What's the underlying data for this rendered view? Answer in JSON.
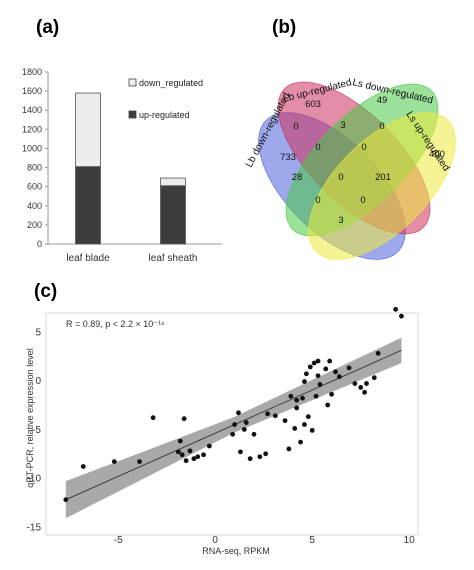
{
  "panel_labels": {
    "a": "(a)",
    "b": "(b)",
    "c": "(c)"
  },
  "chart_data": [
    {
      "type": "bar",
      "stacked": true,
      "categories": [
        "leaf blade",
        "leaf sheath"
      ],
      "series": [
        {
          "name": "up-regulated",
          "values": [
            810,
            610
          ],
          "color": "#3c3c3c"
        },
        {
          "name": "down_regulated",
          "values": [
            770,
            80
          ],
          "color": "#ececec"
        }
      ],
      "ylim": [
        0,
        1800
      ],
      "yticks": [
        0,
        200,
        400,
        600,
        800,
        1000,
        1200,
        1400,
        1600,
        1800
      ],
      "legend_order": [
        "down_regulated",
        "up-regulated"
      ],
      "legend_placement": "right"
    },
    {
      "type": "venn",
      "sets": [
        {
          "name": "Lb down-regulated",
          "color": "#4f62dd"
        },
        {
          "name": "Lb up-regulated",
          "color": "#cc2f5e"
        },
        {
          "name": "Ls down-regulated",
          "color": "#49c945"
        },
        {
          "name": "Ls up-regulated",
          "color": "#ecea3a"
        }
      ],
      "regions": [
        {
          "sets": [
            "Lb down-regulated"
          ],
          "count": 733
        },
        {
          "sets": [
            "Lb up-regulated"
          ],
          "count": 603
        },
        {
          "sets": [
            "Ls down-regulated"
          ],
          "count": 49
        },
        {
          "sets": [
            "Ls up-regulated"
          ],
          "count": 400
        },
        {
          "sets": [
            "Lb down-regulated",
            "Lb up-regulated"
          ],
          "count": 0
        },
        {
          "sets": [
            "Lb up-regulated",
            "Ls down-regulated"
          ],
          "count": 3
        },
        {
          "sets": [
            "Ls down-regulated",
            "Ls up-regulated"
          ],
          "count": 0
        },
        {
          "sets": [
            "Lb down-regulated",
            "Lb up-regulated",
            "Ls down-regulated"
          ],
          "count": 0
        },
        {
          "sets": [
            "Lb up-regulated",
            "Ls down-regulated",
            "Ls up-regulated"
          ],
          "count": 0
        },
        {
          "sets": [
            "Lb down-regulated",
            "Ls down-regulated"
          ],
          "count": 28
        },
        {
          "sets": [
            "Lb down-regulated",
            "Lb up-regulated",
            "Ls down-regulated",
            "Ls up-regulated"
          ],
          "count": 0
        },
        {
          "sets": [
            "Lb up-regulated",
            "Ls up-regulated"
          ],
          "count": 201
        },
        {
          "sets": [
            "Lb down-regulated",
            "Ls down-regulated",
            "Ls up-regulated"
          ],
          "count": 0
        },
        {
          "sets": [
            "Lb down-regulated",
            "Lb up-regulated",
            "Ls up-regulated"
          ],
          "count": 0
        },
        {
          "sets": [
            "Lb down-regulated",
            "Ls up-regulated"
          ],
          "count": 3
        }
      ]
    },
    {
      "type": "scatter",
      "xlabel": "RNA-seq, RPKM",
      "ylabel": "qRT-PCR, relative expression level",
      "annotation": "R = 0.89, p < 2.2 × 10⁻¹⁶",
      "xlim": [
        -8,
        10
      ],
      "ylim": [
        -15,
        7.5
      ],
      "xticks": [
        -5,
        0,
        5,
        10
      ],
      "yticks": [
        -15,
        -10,
        -5,
        0,
        5
      ],
      "grid": false,
      "fit": {
        "x": [
          -7.7,
          9.6
        ],
        "y": [
          -12.2,
          3.1
        ]
      },
      "points": [
        [
          -7.7,
          -12.2
        ],
        [
          -6.8,
          -8.8
        ],
        [
          -5.2,
          -8.3
        ],
        [
          -3.9,
          -8.3
        ],
        [
          -3.2,
          -3.8
        ],
        [
          -1.9,
          -7.3
        ],
        [
          -1.8,
          -6.2
        ],
        [
          -1.7,
          -7.6
        ],
        [
          -1.6,
          -3.9
        ],
        [
          -1.5,
          -8.2
        ],
        [
          -1.3,
          -7.2
        ],
        [
          -1.1,
          -8.0
        ],
        [
          -0.9,
          -7.8
        ],
        [
          -0.6,
          -7.6
        ],
        [
          -0.3,
          -6.7
        ],
        [
          0.9,
          -5.5
        ],
        [
          1.0,
          -4.5
        ],
        [
          1.2,
          -3.3
        ],
        [
          1.3,
          -7.3
        ],
        [
          1.5,
          -5.0
        ],
        [
          1.6,
          -4.3
        ],
        [
          1.8,
          -8.0
        ],
        [
          2.0,
          -5.5
        ],
        [
          2.3,
          -7.8
        ],
        [
          2.6,
          -7.5
        ],
        [
          2.7,
          -3.4
        ],
        [
          3.1,
          -3.6
        ],
        [
          3.6,
          -4.1
        ],
        [
          3.8,
          -7.0
        ],
        [
          3.9,
          -1.6
        ],
        [
          4.1,
          -4.9
        ],
        [
          4.2,
          -2.0
        ],
        [
          4.2,
          -2.8
        ],
        [
          4.4,
          -6.3
        ],
        [
          4.5,
          -1.8
        ],
        [
          4.6,
          -0.1
        ],
        [
          4.6,
          -4.5
        ],
        [
          4.7,
          0.7
        ],
        [
          4.8,
          -3.7
        ],
        [
          4.9,
          1.4
        ],
        [
          5.0,
          -5.1
        ],
        [
          5.1,
          1.8
        ],
        [
          5.2,
          -1.6
        ],
        [
          5.3,
          2.0
        ],
        [
          5.3,
          0.5
        ],
        [
          5.4,
          -0.4
        ],
        [
          5.7,
          1.2
        ],
        [
          5.8,
          -2.5
        ],
        [
          5.9,
          2.0
        ],
        [
          6.0,
          -1.4
        ],
        [
          6.2,
          0.9
        ],
        [
          6.4,
          0.4
        ],
        [
          6.9,
          1.3
        ],
        [
          7.2,
          -0.3
        ],
        [
          7.5,
          -0.7
        ],
        [
          7.7,
          -1.2
        ],
        [
          7.8,
          -0.3
        ],
        [
          8.2,
          0.3
        ],
        [
          8.4,
          2.8
        ],
        [
          9.3,
          7.3
        ],
        [
          9.6,
          6.6
        ]
      ]
    }
  ]
}
